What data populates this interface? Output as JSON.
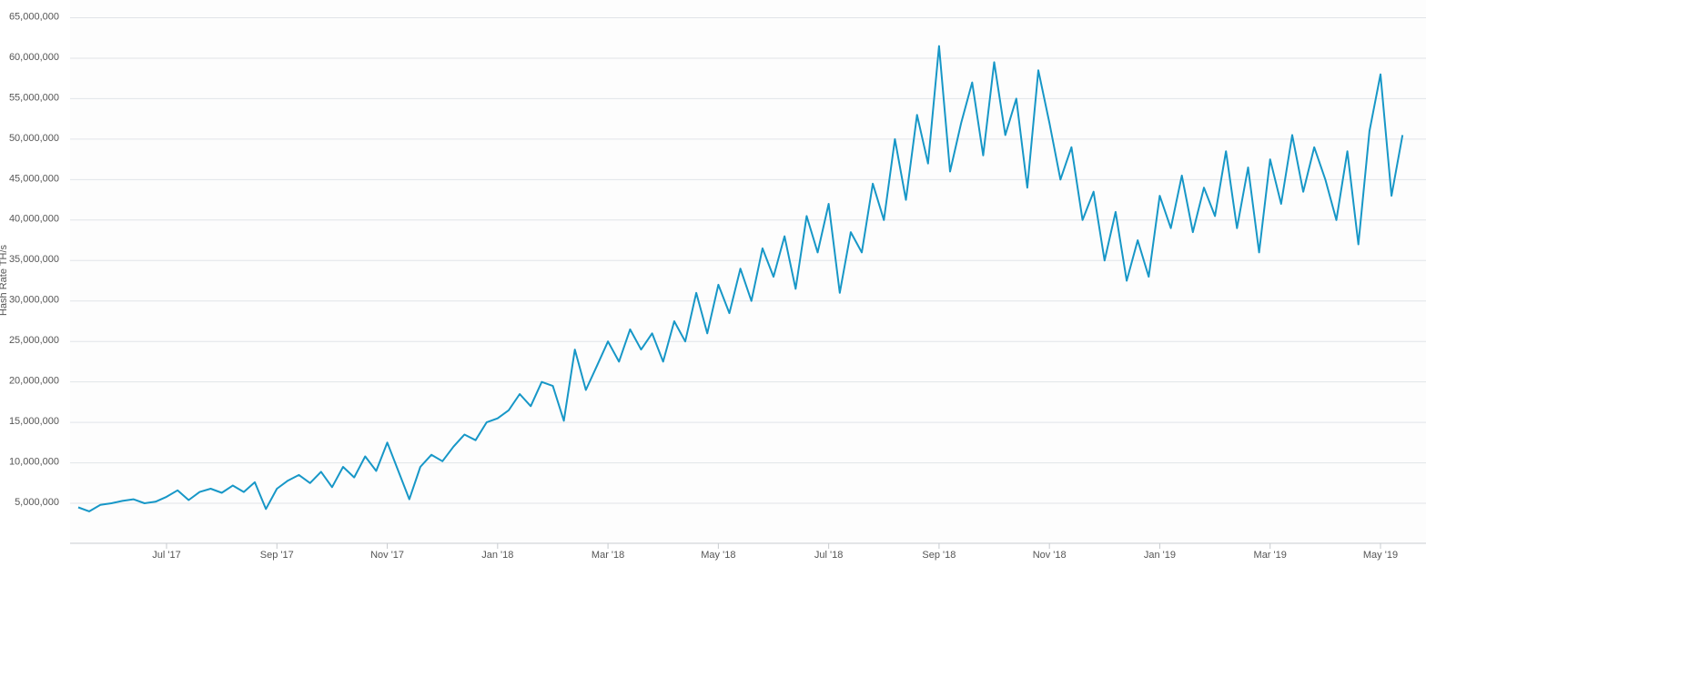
{
  "chart_data": {
    "type": "line",
    "y_label": "Hash Rate TH/s",
    "categories": [
      null,
      null,
      null,
      null,
      null,
      null,
      null,
      null,
      "Jul '17",
      null,
      null,
      null,
      null,
      null,
      null,
      null,
      null,
      null,
      "Sep '17",
      null,
      null,
      null,
      null,
      null,
      null,
      null,
      null,
      null,
      "Nov '17",
      null,
      null,
      null,
      null,
      null,
      null,
      null,
      null,
      null,
      "Jan '18",
      null,
      null,
      null,
      null,
      null,
      null,
      null,
      null,
      null,
      "Mar '18",
      null,
      null,
      null,
      null,
      null,
      null,
      null,
      null,
      null,
      "May '18",
      null,
      null,
      null,
      null,
      null,
      null,
      null,
      null,
      null,
      "Jul '18",
      null,
      null,
      null,
      null,
      null,
      null,
      null,
      null,
      null,
      "Sep '18",
      null,
      null,
      null,
      null,
      null,
      null,
      null,
      null,
      null,
      "Nov '18",
      null,
      null,
      null,
      null,
      null,
      null,
      null,
      null,
      null,
      "Jan '19",
      null,
      null,
      null,
      null,
      null,
      null,
      null,
      null,
      null,
      "Mar '19",
      null,
      null,
      null,
      null,
      null,
      null,
      null,
      null,
      null,
      "May '19",
      null,
      null
    ],
    "series": [
      {
        "color": "#1797c7",
        "values": [
          4500000,
          4000000,
          4800000,
          5000000,
          5300000,
          5500000,
          5000000,
          5200000,
          5800000,
          6600000,
          5400000,
          6400000,
          6800000,
          6300000,
          7200000,
          6400000,
          7600000,
          4300000,
          6800000,
          7800000,
          8500000,
          7500000,
          8900000,
          7000000,
          9500000,
          8200000,
          10800000,
          9000000,
          12500000,
          9000000,
          5500000,
          9500000,
          11000000,
          10200000,
          12000000,
          13500000,
          12800000,
          15000000,
          15500000,
          16500000,
          18500000,
          17000000,
          20000000,
          19500000,
          15200000,
          24000000,
          19000000,
          22000000,
          25000000,
          22500000,
          26500000,
          24000000,
          26000000,
          22500000,
          27500000,
          25000000,
          31000000,
          26000000,
          32000000,
          28500000,
          34000000,
          30000000,
          36500000,
          33000000,
          38000000,
          31500000,
          40500000,
          36000000,
          42000000,
          31000000,
          38500000,
          36000000,
          44500000,
          40000000,
          50000000,
          42500000,
          53000000,
          47000000,
          61500000,
          46000000,
          52000000,
          57000000,
          48000000,
          59500000,
          50500000,
          55000000,
          44000000,
          58500000,
          52000000,
          45000000,
          49000000,
          40000000,
          43500000,
          35000000,
          41000000,
          32500000,
          37500000,
          33000000,
          43000000,
          39000000,
          45500000,
          38500000,
          44000000,
          40500000,
          48500000,
          39000000,
          46500000,
          36000000,
          47500000,
          42000000,
          50500000,
          43500000,
          49000000,
          45000000,
          40000000,
          48500000,
          37000000,
          51000000,
          58000000,
          43000000,
          50500000
        ]
      }
    ],
    "ylim": [
      0,
      65000000
    ],
    "yticks": [
      {
        "value": 5000000,
        "label": "5,000,000"
      },
      {
        "value": 10000000,
        "label": "10,000,000"
      },
      {
        "value": 15000000,
        "label": "15,000,000"
      },
      {
        "value": 20000000,
        "label": "20,000,000"
      },
      {
        "value": 25000000,
        "label": "25,000,000"
      },
      {
        "value": 30000000,
        "label": "30,000,000"
      },
      {
        "value": 35000000,
        "label": "35,000,000"
      },
      {
        "value": 40000000,
        "label": "40,000,000"
      },
      {
        "value": 45000000,
        "label": "45,000,000"
      },
      {
        "value": 50000000,
        "label": "50,000,000"
      },
      {
        "value": 55000000,
        "label": "55,000,000"
      },
      {
        "value": 60000000,
        "label": "60,000,000"
      },
      {
        "value": 65000000,
        "label": "65,000,000"
      }
    ],
    "grid": true
  }
}
